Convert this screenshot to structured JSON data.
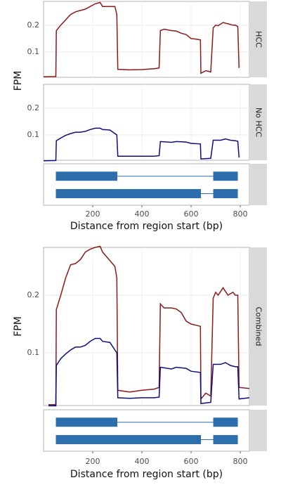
{
  "chart_data": [
    {
      "type": "line",
      "ylabel": "FPM",
      "xlabel": "Distance from region start (bp)",
      "xlim": [
        0,
        837
      ],
      "ylim": [
        0.005,
        0.289
      ],
      "yticks": [
        0.1,
        0.2
      ],
      "xticks": [
        200,
        400,
        600,
        800
      ],
      "panels": [
        {
          "strip": "HCC",
          "series": [
            {
              "color": "#8b1a1a",
              "x": [
                0,
                50,
                52,
                70,
                90,
                110,
                130,
                150,
                170,
                190,
                210,
                230,
                240,
                270,
                290,
                298,
                302,
                350,
                400,
                450,
                470,
                475,
                490,
                520,
                540,
                560,
                580,
                600,
                620,
                638,
                640,
                660,
                680,
                690,
                700,
                710,
                730,
                750,
                770,
                780,
                790,
                795
              ],
              "values": [
                0.007,
                0.008,
                0.18,
                0.2,
                0.22,
                0.24,
                0.25,
                0.255,
                0.26,
                0.27,
                0.28,
                0.285,
                0.27,
                0.27,
                0.27,
                0.24,
                0.035,
                0.033,
                0.034,
                0.037,
                0.04,
                0.18,
                0.185,
                0.18,
                0.178,
                0.17,
                0.165,
                0.15,
                0.148,
                0.145,
                0.02,
                0.03,
                0.025,
                0.19,
                0.2,
                0.198,
                0.21,
                0.205,
                0.2,
                0.2,
                0.195,
                0.04
              ]
            }
          ]
        },
        {
          "strip": "No HCC",
          "series": [
            {
              "color": "#0d0d80",
              "x": [
                0,
                50,
                52,
                70,
                90,
                110,
                130,
                150,
                170,
                190,
                210,
                230,
                240,
                270,
                290,
                298,
                302,
                350,
                400,
                450,
                470,
                475,
                520,
                540,
                580,
                600,
                638,
                640,
                680,
                690,
                720,
                740,
                760,
                780,
                790,
                795
              ],
              "values": [
                0.003,
                0.004,
                0.078,
                0.088,
                0.098,
                0.105,
                0.11,
                0.11,
                0.113,
                0.12,
                0.125,
                0.125,
                0.12,
                0.118,
                0.105,
                0.1,
                0.02,
                0.02,
                0.02,
                0.02,
                0.022,
                0.075,
                0.072,
                0.075,
                0.073,
                0.068,
                0.066,
                0.01,
                0.012,
                0.08,
                0.08,
                0.085,
                0.08,
                0.078,
                0.076,
                0.015
              ]
            }
          ]
        }
      ],
      "transcripts": [
        {
          "exons": [
            [
              50,
              300
            ],
            [
              690,
              790
            ]
          ]
        },
        {
          "exons": [
            [
              50,
              640
            ],
            [
              690,
              790
            ]
          ]
        }
      ],
      "transcript_color": "#2c6fac"
    },
    {
      "type": "line",
      "ylabel": "FPM",
      "xlabel": "Distance from region start (bp)",
      "xlim": [
        0,
        837
      ],
      "ylim": [
        0.0085,
        0.283
      ],
      "yticks": [
        0.1,
        0.2
      ],
      "xticks": [
        200,
        400,
        600,
        800
      ],
      "panels": [
        {
          "strip": "Combined",
          "series": [
            {
              "color": "#8b1a1a",
              "x": [
                20,
                50,
                52,
                70,
                90,
                110,
                130,
                150,
                170,
                190,
                210,
                230,
                240,
                270,
                290,
                298,
                302,
                350,
                400,
                450,
                470,
                475,
                490,
                520,
                540,
                560,
                580,
                600,
                620,
                638,
                640,
                660,
                680,
                690,
                700,
                710,
                730,
                750,
                770,
                780,
                790,
                795,
                837
              ],
              "values": [
                0.01,
                0.01,
                0.175,
                0.2,
                0.23,
                0.253,
                0.255,
                0.262,
                0.275,
                0.28,
                0.283,
                0.285,
                0.275,
                0.26,
                0.25,
                0.23,
                0.035,
                0.032,
                0.035,
                0.037,
                0.04,
                0.185,
                0.178,
                0.178,
                0.176,
                0.17,
                0.155,
                0.15,
                0.148,
                0.146,
                0.02,
                0.03,
                0.025,
                0.195,
                0.205,
                0.2,
                0.213,
                0.2,
                0.205,
                0.2,
                0.2,
                0.04,
                0.038
              ]
            },
            {
              "color": "#0d0d80",
              "x": [
                20,
                50,
                52,
                70,
                90,
                110,
                130,
                150,
                170,
                190,
                210,
                230,
                240,
                270,
                290,
                298,
                302,
                350,
                400,
                450,
                470,
                475,
                520,
                540,
                580,
                600,
                638,
                640,
                680,
                690,
                720,
                740,
                760,
                780,
                790,
                795,
                837
              ],
              "values": [
                0.008,
                0.008,
                0.078,
                0.09,
                0.098,
                0.105,
                0.11,
                0.11,
                0.113,
                0.12,
                0.125,
                0.125,
                0.12,
                0.118,
                0.105,
                0.1,
                0.022,
                0.021,
                0.022,
                0.022,
                0.023,
                0.075,
                0.072,
                0.075,
                0.073,
                0.068,
                0.066,
                0.012,
                0.014,
                0.08,
                0.08,
                0.083,
                0.078,
                0.076,
                0.076,
                0.02,
                0.022
              ]
            }
          ]
        }
      ],
      "transcripts": [
        {
          "exons": [
            [
              50,
              300
            ],
            [
              690,
              790
            ]
          ]
        },
        {
          "exons": [
            [
              50,
              640
            ],
            [
              690,
              790
            ]
          ]
        }
      ],
      "transcript_color": "#2c6fac"
    }
  ]
}
